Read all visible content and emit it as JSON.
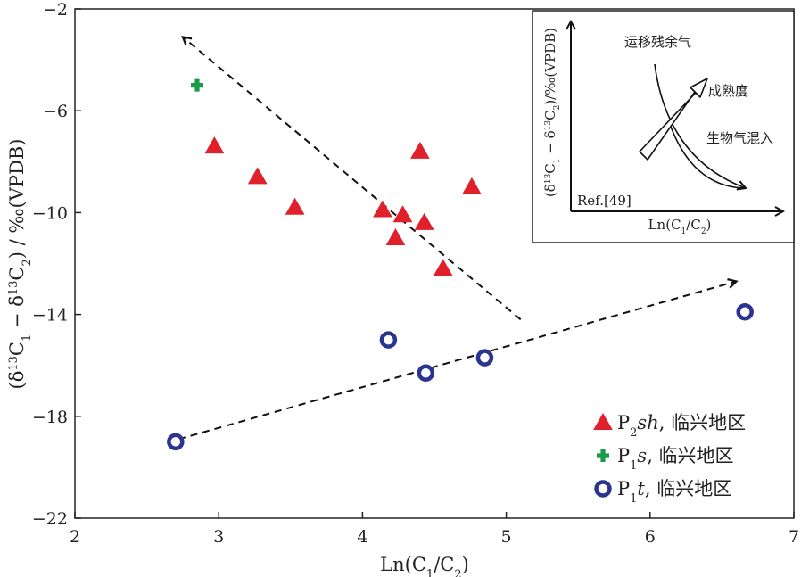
{
  "chart_data": {
    "type": "scatter",
    "xlabel_parts": [
      "Ln(C",
      "1",
      "/C",
      "2",
      ")"
    ],
    "ylabel_parts": [
      "(δ",
      "13",
      "C",
      "1",
      " − δ",
      "13",
      "C",
      "2",
      ") / ‰(VPDB)"
    ],
    "xlim": [
      2,
      7
    ],
    "ylim": [
      -22,
      -2
    ],
    "xticks": [
      2,
      3,
      4,
      5,
      6,
      7
    ],
    "yticks": [
      -2,
      -6,
      -10,
      -14,
      -18,
      -22
    ],
    "ytick_labels": [
      "−2",
      "−6",
      "−10",
      "−14",
      "−18",
      "−22"
    ],
    "grid": false,
    "legend_position": "bottom-right",
    "series": [
      {
        "key": "p2sh",
        "legend": {
          "sym": "P",
          "sub": "2",
          "ital": "sh",
          "rest": ", 临兴地区"
        },
        "marker": "triangle",
        "color": "#e0202a",
        "points": [
          [
            2.97,
            -7.4
          ],
          [
            3.27,
            -8.6
          ],
          [
            3.53,
            -9.8
          ],
          [
            4.14,
            -9.9
          ],
          [
            4.28,
            -10.1
          ],
          [
            4.43,
            -10.4
          ],
          [
            4.23,
            -11.0
          ],
          [
            4.4,
            -7.6
          ],
          [
            4.76,
            -9.0
          ],
          [
            4.56,
            -12.2
          ]
        ]
      },
      {
        "key": "p1s",
        "legend": {
          "sym": "P",
          "sub": "1",
          "ital": "s",
          "rest": ", 临兴地区"
        },
        "marker": "plus",
        "color": "#1a9a4a",
        "points": [
          [
            2.85,
            -5.0
          ]
        ]
      },
      {
        "key": "p1t",
        "legend": {
          "sym": "P",
          "sub": "1",
          "ital": "t",
          "rest": ", 临兴地区"
        },
        "marker": "circle",
        "color": "#2b3590",
        "points": [
          [
            2.7,
            -19.0
          ],
          [
            4.18,
            -15.0
          ],
          [
            4.44,
            -16.3
          ],
          [
            4.85,
            -15.7
          ],
          [
            6.66,
            -13.9
          ]
        ]
      }
    ],
    "trend_arrows": [
      {
        "from": [
          5.1,
          -14.2
        ],
        "to": [
          2.75,
          -3.1
        ]
      },
      {
        "from": [
          2.72,
          -18.9
        ],
        "to": [
          6.6,
          -12.7
        ]
      }
    ],
    "inset": {
      "y_axis_label_parts": [
        "(δ",
        "13",
        "C",
        "1",
        " − δ",
        "13",
        "C",
        "2",
        ")/‰(VPDB)"
      ],
      "x_axis_label_parts": [
        "Ln(C",
        "1",
        "/C",
        "2",
        ")"
      ],
      "annotations": [
        "运移残余气",
        "成熟度",
        "生物气混入"
      ],
      "reference": "Ref.[49]"
    }
  }
}
